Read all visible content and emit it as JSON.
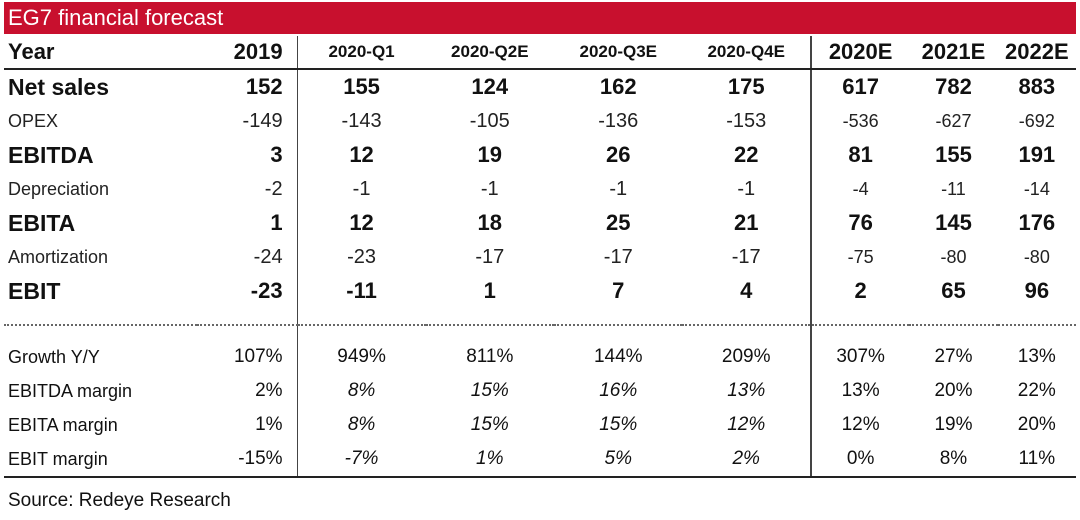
{
  "title": "EG7 financial forecast",
  "header": [
    "Year",
    "2019",
    "2020-Q1",
    "2020-Q2E",
    "2020-Q3E",
    "2020-Q4E",
    "2020E",
    "2021E",
    "2022E"
  ],
  "rows": [
    {
      "label": "Net sales",
      "values": [
        "152",
        "155",
        "124",
        "162",
        "175",
        "617",
        "782",
        "883"
      ]
    },
    {
      "label": "OPEX",
      "values": [
        "-149",
        "-143",
        "-105",
        "-136",
        "-153",
        "-536",
        "-627",
        "-692"
      ]
    },
    {
      "label": "EBITDA",
      "values": [
        "3",
        "12",
        "19",
        "26",
        "22",
        "81",
        "155",
        "191"
      ]
    },
    {
      "label": "Depreciation",
      "values": [
        "-2",
        "-1",
        "-1",
        "-1",
        "-1",
        "-4",
        "-11",
        "-14"
      ]
    },
    {
      "label": "EBITA",
      "values": [
        "1",
        "12",
        "18",
        "25",
        "21",
        "76",
        "145",
        "176"
      ]
    },
    {
      "label": "Amortization",
      "values": [
        "-24",
        "-23",
        "-17",
        "-17",
        "-17",
        "-75",
        "-80",
        "-80"
      ]
    },
    {
      "label": "EBIT",
      "values": [
        "-23",
        "-11",
        "1",
        "7",
        "4",
        "2",
        "65",
        "96"
      ]
    }
  ],
  "ratios": [
    {
      "label": "Growth Y/Y",
      "values": [
        "107%",
        "949%",
        "811%",
        "144%",
        "209%",
        "307%",
        "27%",
        "13%"
      ]
    },
    {
      "label": "EBITDA margin",
      "values": [
        "2%",
        "8%",
        "15%",
        "16%",
        "13%",
        "13%",
        "20%",
        "22%"
      ]
    },
    {
      "label": "EBITA margin",
      "values": [
        "1%",
        "8%",
        "15%",
        "15%",
        "12%",
        "12%",
        "19%",
        "20%"
      ]
    },
    {
      "label": "EBIT margin",
      "values": [
        "-15%",
        "-7%",
        "1%",
        "5%",
        "2%",
        "0%",
        "8%",
        "11%"
      ]
    }
  ],
  "source": "Source: Redeye Research"
}
